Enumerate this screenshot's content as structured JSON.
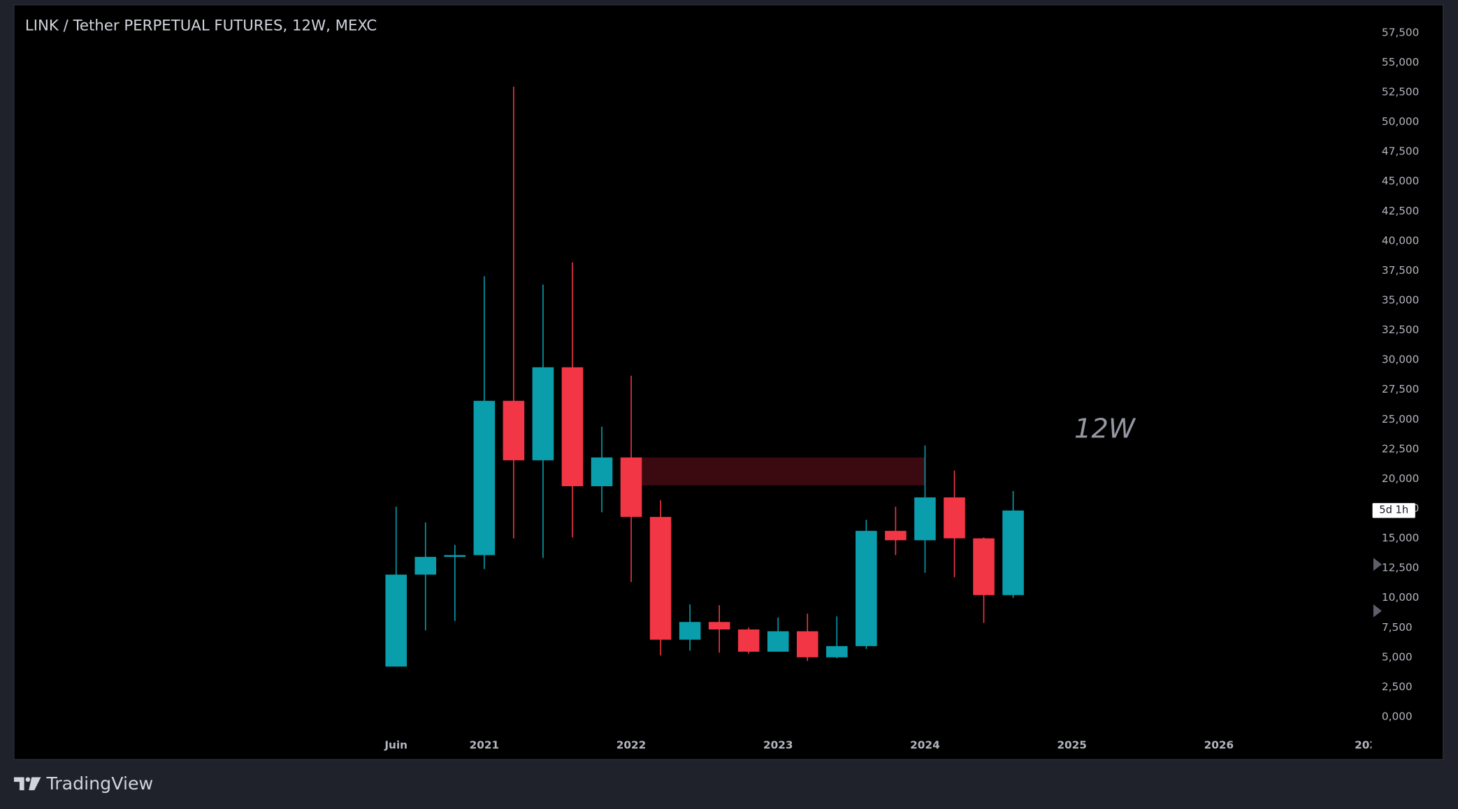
{
  "chart_data": {
    "type": "candlestick",
    "title": "LINK / Tether PERPETUAL FUTURES, 12W, MEXC",
    "categories": [
      "Juin",
      null,
      null,
      "2021",
      null,
      null,
      null,
      null,
      "2022",
      null,
      null,
      null,
      null,
      "2023",
      null,
      null,
      null,
      null,
      "2024",
      null,
      null,
      null,
      null,
      "2025",
      null,
      null,
      null,
      null,
      "2026",
      null,
      null,
      null,
      null,
      "202"
    ],
    "open": [
      4220,
      11950,
      13440,
      13590,
      26560,
      21560,
      29380,
      19380,
      21800,
      16800,
      6480,
      7970,
      7340,
      5470,
      7190,
      5000,
      5940,
      15630,
      14840,
      18440,
      15000,
      10230,
      null,
      null,
      null,
      null,
      null,
      null,
      null,
      null,
      null,
      null,
      null,
      null
    ],
    "high": [
      17660,
      16330,
      14450,
      37030,
      52970,
      36330,
      38200,
      24380,
      28670,
      18200,
      9450,
      9380,
      7500,
      8360,
      8670,
      8440,
      16560,
      17660,
      22810,
      20700,
      15080,
      18980,
      null,
      null,
      null,
      null,
      null,
      null,
      null,
      null,
      null,
      null,
      null,
      null
    ],
    "low": [
      4220,
      7270,
      8050,
      12420,
      15000,
      13360,
      15080,
      17190,
      11330,
      5160,
      5550,
      5390,
      5310,
      5470,
      4690,
      4920,
      5700,
      13590,
      12110,
      11720,
      7890,
      10000,
      null,
      null,
      null,
      null,
      null,
      null,
      null,
      null,
      null,
      null,
      null,
      null
    ],
    "close": [
      11950,
      13440,
      13590,
      26560,
      21560,
      29380,
      19380,
      21800,
      16800,
      6480,
      7970,
      7340,
      5470,
      7190,
      5000,
      5940,
      15630,
      14840,
      18440,
      15000,
      10230,
      17340,
      null,
      null,
      null,
      null,
      null,
      null,
      null,
      null,
      null,
      null,
      null,
      null
    ],
    "up_color": "#0a9ead",
    "down_color": "#f23645",
    "ylim": [
      -1094,
      59844
    ],
    "yticks": [
      {
        "value": 0,
        "label": "0,000"
      },
      {
        "value": 2500,
        "label": "2,500"
      },
      {
        "value": 5000,
        "label": "5,000"
      },
      {
        "value": 7500,
        "label": "7,500"
      },
      {
        "value": 10000,
        "label": "10,000"
      },
      {
        "value": 12500,
        "label": "12,500"
      },
      {
        "value": 15000,
        "label": "15,000"
      },
      {
        "value": 17500,
        "label": "17,500"
      },
      {
        "value": 20000,
        "label": "20,000"
      },
      {
        "value": 22500,
        "label": "22,500"
      },
      {
        "value": 25000,
        "label": "25,000"
      },
      {
        "value": 27500,
        "label": "27,500"
      },
      {
        "value": 30000,
        "label": "30,000"
      },
      {
        "value": 32500,
        "label": "32,500"
      },
      {
        "value": 35000,
        "label": "35,000"
      },
      {
        "value": 37500,
        "label": "37,500"
      },
      {
        "value": 40000,
        "label": "40,000"
      },
      {
        "value": 42500,
        "label": "42,500"
      },
      {
        "value": 45000,
        "label": "45,000"
      },
      {
        "value": 47500,
        "label": "47,500"
      },
      {
        "value": 50000,
        "label": "50,000"
      },
      {
        "value": 52500,
        "label": "52,500"
      },
      {
        "value": 55000,
        "label": "55,000"
      },
      {
        "value": 57500,
        "label": "57,500"
      }
    ],
    "grid": false,
    "zone": {
      "high": 21800,
      "low": 19450,
      "color": "#3b0910"
    },
    "annotation": "12W",
    "countdown_label": "5d 1h"
  },
  "footer": {
    "brand": "TradingView"
  }
}
